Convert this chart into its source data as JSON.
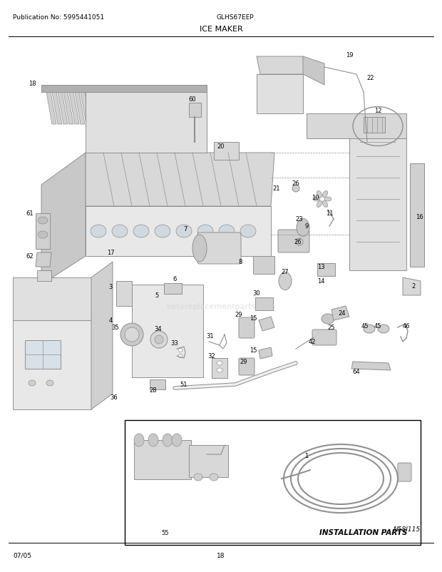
{
  "title": "ICE MAKER",
  "pub_no": "Publication No: 5995441051",
  "model": "GLHS67EEP",
  "date": "07/05",
  "page": "18",
  "diagram_ref": "N58I115",
  "install_label": "INSTALLATION PARTS",
  "bg_color": "#ffffff",
  "text_color": "#000000",
  "fig_width": 6.2,
  "fig_height": 8.03,
  "dpi": 100,
  "watermark_text": "easyreplacementparts.com"
}
